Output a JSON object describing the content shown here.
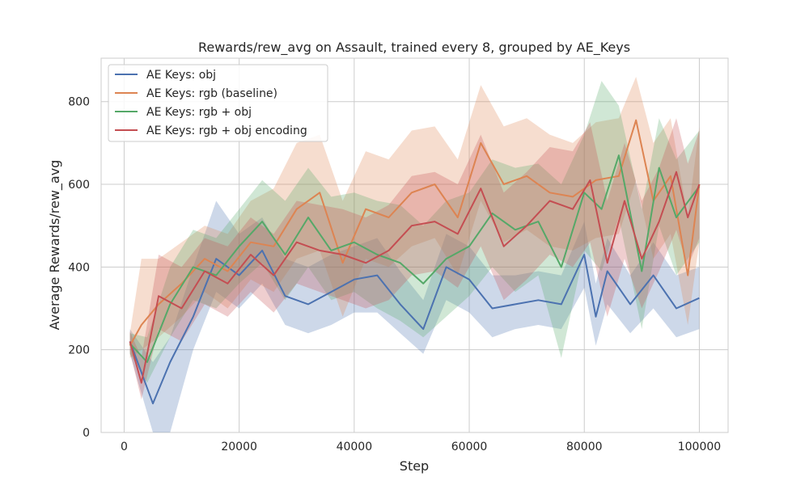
{
  "chart_data": {
    "type": "line",
    "title": "Rewards/rew_avg on Assault, trained every 8, grouped by AE_Keys",
    "xlabel": "Step",
    "ylabel": "Average Rewards/rew_avg",
    "xlim": [
      -4000,
      105000
    ],
    "ylim": [
      0,
      905
    ],
    "xticks": [
      0,
      20000,
      40000,
      60000,
      80000,
      100000
    ],
    "xtick_labels": [
      "0",
      "20000",
      "40000",
      "60000",
      "80000",
      "100000"
    ],
    "yticks": [
      0,
      200,
      400,
      600,
      800
    ],
    "ytick_labels": [
      "0",
      "200",
      "400",
      "600",
      "800"
    ],
    "grid": true,
    "legend_position": "top-left",
    "series": [
      {
        "name": "AE Keys: obj",
        "color": "#4c72b0",
        "x": [
          1000,
          5000,
          8000,
          12000,
          16000,
          20000,
          24000,
          28000,
          32000,
          36000,
          40000,
          44000,
          48000,
          52000,
          56000,
          60000,
          64000,
          68000,
          72000,
          76000,
          80000,
          82000,
          84000,
          88000,
          92000,
          96000,
          100000
        ],
        "y": [
          220,
          70,
          170,
          280,
          420,
          380,
          440,
          330,
          310,
          340,
          370,
          380,
          310,
          250,
          400,
          370,
          300,
          310,
          320,
          310,
          430,
          280,
          390,
          310,
          380,
          300,
          325
        ],
        "lower": [
          190,
          0,
          0,
          200,
          340,
          300,
          360,
          260,
          240,
          260,
          290,
          290,
          240,
          190,
          320,
          290,
          230,
          250,
          260,
          250,
          350,
          210,
          310,
          240,
          300,
          230,
          250
        ],
        "upper": [
          250,
          170,
          230,
          400,
          560,
          480,
          520,
          420,
          400,
          430,
          450,
          470,
          390,
          320,
          480,
          450,
          380,
          380,
          390,
          380,
          510,
          360,
          470,
          380,
          460,
          380,
          400
        ]
      },
      {
        "name": "AE Keys: rgb (baseline)",
        "color": "#dd8452",
        "x": [
          1000,
          3000,
          6000,
          10000,
          14000,
          18000,
          22000,
          26000,
          30000,
          34000,
          38000,
          42000,
          46000,
          50000,
          54000,
          58000,
          62000,
          66000,
          70000,
          74000,
          78000,
          82000,
          86000,
          89000,
          92000,
          95000,
          98000,
          100000
        ],
        "y": [
          210,
          260,
          310,
          360,
          420,
          390,
          460,
          450,
          540,
          580,
          410,
          540,
          520,
          580,
          600,
          520,
          700,
          600,
          620,
          580,
          570,
          610,
          620,
          755,
          560,
          620,
          380,
          600
        ],
        "lower": [
          180,
          200,
          230,
          280,
          340,
          300,
          370,
          340,
          420,
          440,
          280,
          420,
          400,
          450,
          470,
          380,
          560,
          460,
          490,
          450,
          440,
          470,
          480,
          610,
          420,
          480,
          260,
          460
        ],
        "upper": [
          240,
          420,
          420,
          460,
          500,
          480,
          560,
          590,
          700,
          720,
          560,
          680,
          660,
          730,
          740,
          660,
          840,
          740,
          760,
          720,
          700,
          750,
          760,
          860,
          700,
          760,
          520,
          740
        ]
      },
      {
        "name": "AE Keys: rgb + obj",
        "color": "#55a868",
        "x": [
          1000,
          4000,
          8000,
          12000,
          16000,
          20000,
          24000,
          28000,
          32000,
          36000,
          40000,
          44000,
          48000,
          52000,
          56000,
          60000,
          64000,
          68000,
          72000,
          76000,
          80000,
          83000,
          86000,
          90000,
          93000,
          96000,
          100000
        ],
        "y": [
          215,
          170,
          310,
          400,
          380,
          450,
          510,
          430,
          520,
          440,
          460,
          430,
          410,
          360,
          420,
          450,
          530,
          490,
          510,
          400,
          580,
          540,
          670,
          390,
          640,
          520,
          595
        ],
        "lower": [
          190,
          120,
          230,
          320,
          300,
          360,
          410,
          320,
          400,
          320,
          340,
          300,
          270,
          230,
          280,
          330,
          400,
          340,
          380,
          180,
          440,
          390,
          520,
          250,
          500,
          380,
          460
        ],
        "upper": [
          240,
          230,
          400,
          490,
          470,
          540,
          610,
          560,
          640,
          570,
          580,
          560,
          550,
          500,
          560,
          580,
          660,
          640,
          650,
          600,
          720,
          850,
          790,
          540,
          760,
          660,
          730
        ]
      },
      {
        "name": "AE Keys: rgb + obj encoding",
        "color": "#c44e52",
        "x": [
          1000,
          3000,
          6000,
          10000,
          14000,
          18000,
          22000,
          26000,
          30000,
          34000,
          38000,
          42000,
          46000,
          50000,
          54000,
          58000,
          62000,
          66000,
          70000,
          74000,
          78000,
          81000,
          84000,
          87000,
          90000,
          93000,
          96000,
          98000,
          100000
        ],
        "y": [
          220,
          120,
          330,
          300,
          390,
          360,
          430,
          380,
          460,
          440,
          430,
          410,
          440,
          500,
          510,
          480,
          590,
          450,
          500,
          560,
          540,
          610,
          410,
          560,
          420,
          510,
          630,
          520,
          600
        ],
        "lower": [
          195,
          80,
          250,
          220,
          310,
          280,
          340,
          290,
          360,
          340,
          320,
          300,
          320,
          380,
          390,
          350,
          450,
          320,
          370,
          430,
          400,
          460,
          280,
          420,
          300,
          390,
          490,
          400,
          470
        ],
        "upper": [
          245,
          180,
          430,
          400,
          470,
          450,
          520,
          480,
          560,
          550,
          540,
          520,
          550,
          620,
          630,
          600,
          720,
          580,
          630,
          690,
          680,
          750,
          560,
          700,
          560,
          640,
          760,
          650,
          730
        ]
      }
    ]
  }
}
